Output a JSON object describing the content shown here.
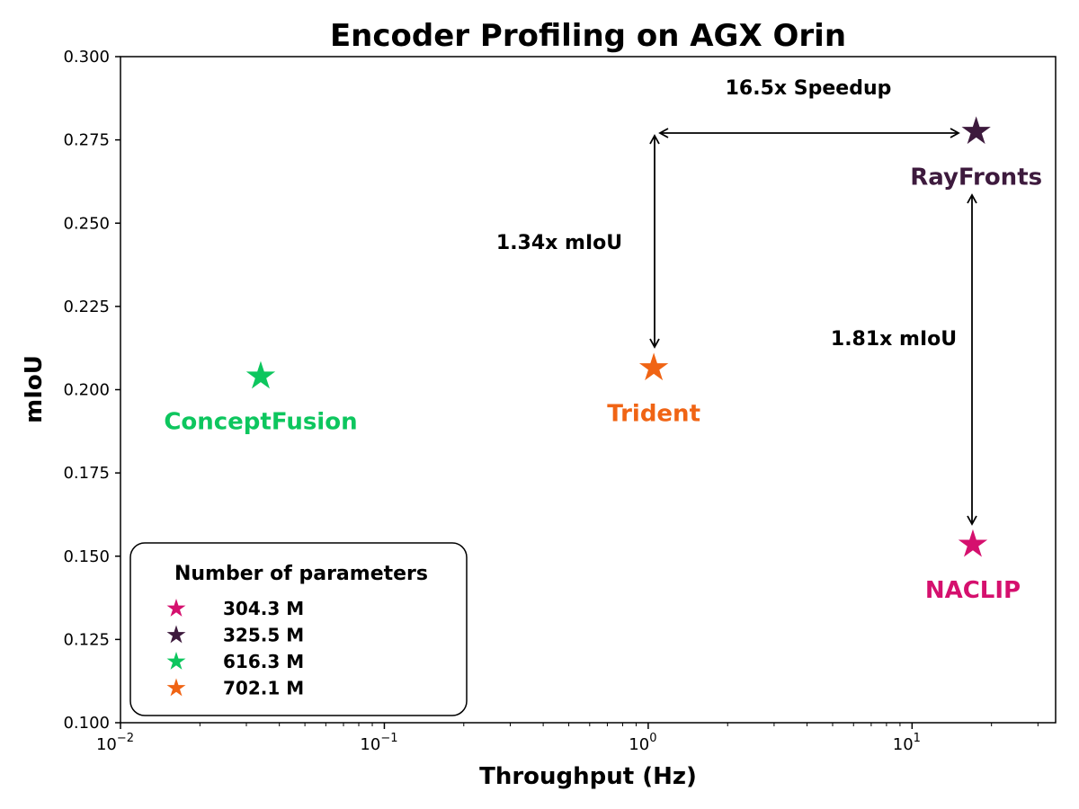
{
  "chart_data": {
    "type": "scatter",
    "title": "Encoder Profiling on AGX Orin",
    "xlabel": "Throughput (Hz)",
    "ylabel": "mIoU",
    "xscale": "log",
    "xlim": [
      0.01,
      35
    ],
    "ylim": [
      0.1,
      0.3
    ],
    "yticks": [
      "0.100",
      "0.125",
      "0.150",
      "0.175",
      "0.200",
      "0.225",
      "0.250",
      "0.275",
      "0.300"
    ],
    "xticks": [
      {
        "base": "10",
        "exp": "−2",
        "value": 0.01
      },
      {
        "base": "10",
        "exp": "−1",
        "value": 0.1
      },
      {
        "base": "10",
        "exp": "0",
        "value": 1
      },
      {
        "base": "10",
        "exp": "1",
        "value": 10
      }
    ],
    "points": [
      {
        "label": "ConceptFusion",
        "x": 0.034,
        "y": 0.204,
        "color": "#0dc65e"
      },
      {
        "label": "Trident",
        "x": 1.05,
        "y": 0.2065,
        "color": "#f06414"
      },
      {
        "label": "RayFronts",
        "x": 17.5,
        "y": 0.2775,
        "color": "#3d1a3d"
      },
      {
        "label": "NACLIP",
        "x": 17,
        "y": 0.1535,
        "color": "#d5106e"
      }
    ],
    "annotations": [
      {
        "text": "16.5x Speedup"
      },
      {
        "text": "1.34x mIoU"
      },
      {
        "text": "1.81x mIoU"
      }
    ],
    "legend": {
      "title": "Number of parameters",
      "placement": "lower-left",
      "entries": [
        {
          "label": "304.3 M",
          "color": "#d5106e"
        },
        {
          "label": "325.5 M",
          "color": "#3d1a3d"
        },
        {
          "label": "616.3 M",
          "color": "#0dc65e"
        },
        {
          "label": "702.1 M",
          "color": "#f06414"
        }
      ]
    },
    "grid": false
  }
}
